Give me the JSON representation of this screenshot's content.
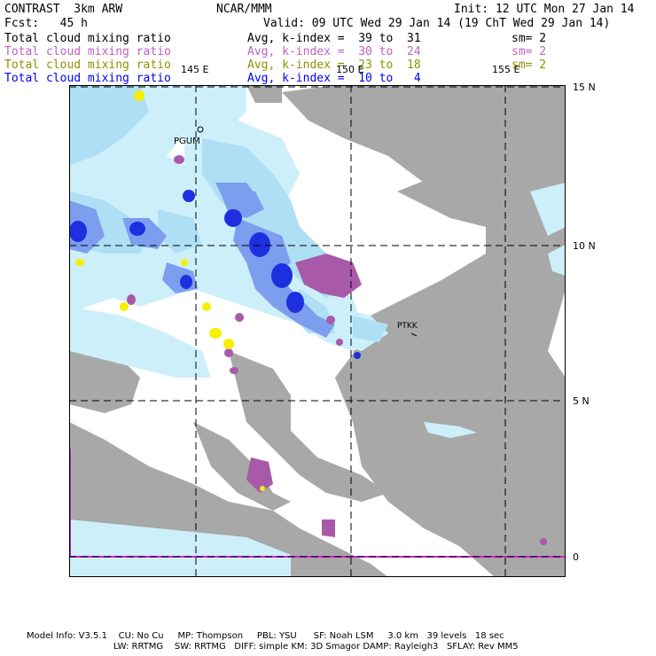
{
  "header": {
    "left_title": "CONTRAST  3km ARW",
    "center_title": "NCAR/MMM",
    "init": "Init: 12 UTC Mon 27 Jan 14",
    "fcst": "Fcst:   45 h",
    "valid": "Valid: 09 UTC Wed 29 Jan 14 (19 ChT Wed 29 Jan 14)"
  },
  "layers": [
    {
      "field": "Total cloud mixing ratio",
      "avg": "Avg, k-index =  39 to  31",
      "sm": "sm= 2",
      "color": "#000000"
    },
    {
      "field": "Total cloud mixing ratio",
      "avg": "Avg, k-index =  30 to  24",
      "sm": "sm= 2",
      "color": "#c060c0"
    },
    {
      "field": "Total cloud mixing ratio",
      "avg": "Avg, k-index =  23 to  18",
      "sm": "sm= 2",
      "color": "#909000"
    },
    {
      "field": "Total cloud mixing ratio",
      "avg": "Avg, k-index =  10 to   4",
      "sm": "",
      "color": "#0000ee"
    }
  ],
  "map": {
    "lon_labels": [
      "145 E",
      "150 E",
      "155 E"
    ],
    "lat_labels": [
      "15 N",
      "10 N",
      "5 N",
      "0"
    ],
    "stations": [
      "PGUM",
      "PTKK"
    ],
    "colors": {
      "cloud_gray": "#a8a8a8",
      "cloud_light_cyan": "#cdeffa",
      "cloud_cyan": "#aedff5",
      "cloud_blue": "#7d9eee",
      "cloud_dark_blue": "#1e2fe0",
      "purple": "#a85aa8",
      "yellow": "#f4f000",
      "boundary_magenta": "#d020d0"
    }
  },
  "footer": {
    "line1": "Model Info: V3.5.1    CU: No Cu     MP: Thompson     PBL: YSU      SF: Noah LSM     3.0 km   39 levels   18 sec",
    "line2": "LW: RRTMG    SW: RRTMG   DIFF: simple KM: 3D Smagor DAMP: Rayleigh3   SFLAY: Rev MM5"
  }
}
